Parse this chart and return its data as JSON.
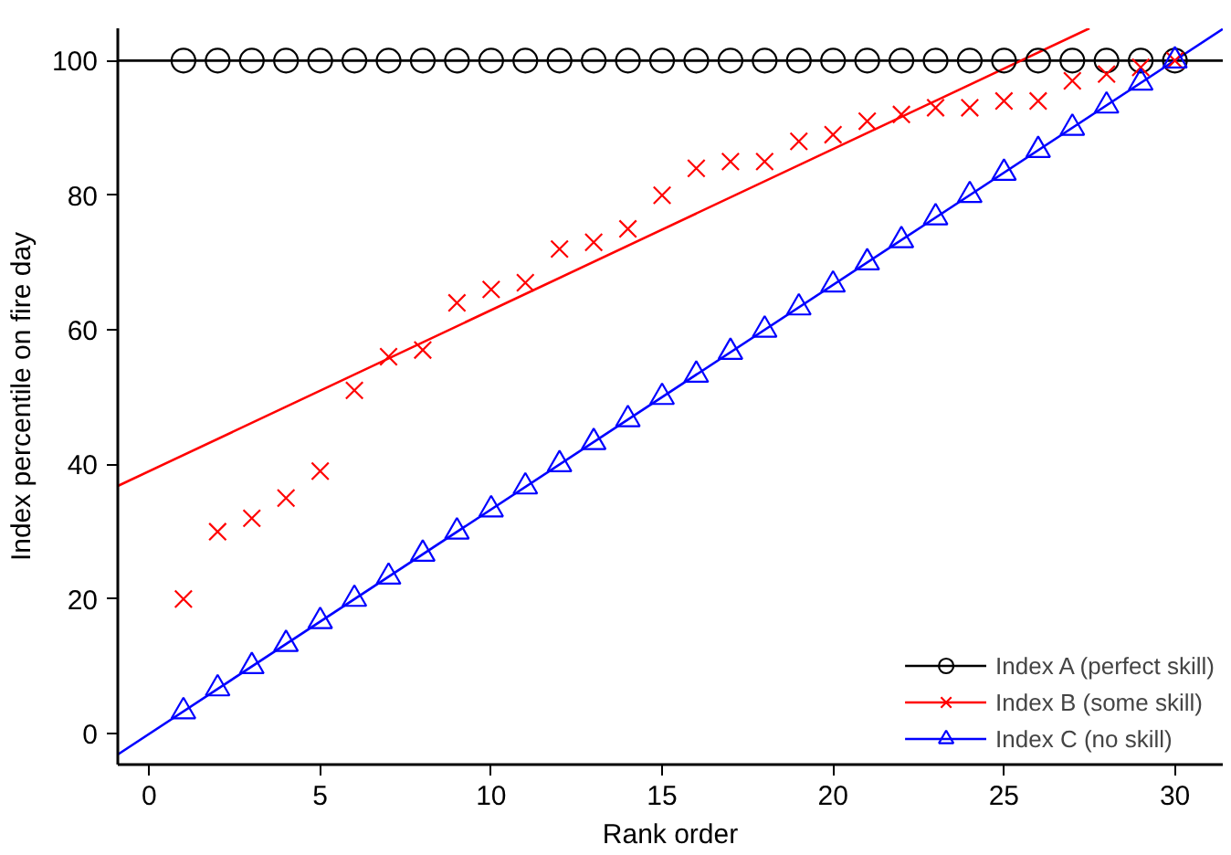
{
  "chart_data": {
    "type": "scatter",
    "xlabel": "Rank order",
    "ylabel": "Index percentile on fire day",
    "xlim": [
      -0.92,
      31.4
    ],
    "ylim": [
      -4.6,
      104.8
    ],
    "xticks": [
      0,
      5,
      10,
      15,
      20,
      25,
      30
    ],
    "yticks": [
      0,
      20,
      40,
      60,
      80,
      100
    ],
    "grid": false,
    "legend": "bottom right",
    "series": [
      {
        "type": "line",
        "color": "#000000",
        "x": [
          -0.92,
          31.4
        ],
        "values": [
          100,
          100
        ]
      },
      {
        "type": "line",
        "color": "#ff0000",
        "x": [
          -0.92,
          27.5
        ],
        "values": [
          36.8,
          104.8
        ]
      },
      {
        "type": "line",
        "color": "#0000ff",
        "x": [
          -0.92,
          31.4
        ],
        "values": [
          -3.1,
          104.7
        ]
      },
      {
        "name": "Index A (perfect skill)",
        "color": "#000000",
        "marker": "circle",
        "x": [
          1,
          2,
          3,
          4,
          5,
          6,
          7,
          8,
          9,
          10,
          11,
          12,
          13,
          14,
          15,
          16,
          17,
          18,
          19,
          20,
          21,
          22,
          23,
          24,
          25,
          26,
          27,
          28,
          29,
          30
        ],
        "values": [
          100,
          100,
          100,
          100,
          100,
          100,
          100,
          100,
          100,
          100,
          100,
          100,
          100,
          100,
          100,
          100,
          100,
          100,
          100,
          100,
          100,
          100,
          100,
          100,
          100,
          100,
          100,
          100,
          100,
          100
        ]
      },
      {
        "name": "Index B (some skill)",
        "color": "#ff0000",
        "marker": "cross",
        "x": [
          1,
          2,
          3,
          4,
          5,
          6,
          7,
          8,
          9,
          10,
          11,
          12,
          13,
          14,
          15,
          16,
          17,
          18,
          19,
          20,
          21,
          22,
          23,
          24,
          25,
          26,
          27,
          28,
          29,
          30
        ],
        "values": [
          20,
          30,
          32,
          35,
          39,
          51,
          56,
          57,
          64,
          66,
          67,
          72,
          73,
          75,
          80,
          84,
          85,
          85,
          88,
          89,
          91,
          92,
          93,
          93,
          94,
          94,
          97,
          98,
          99,
          100
        ]
      },
      {
        "name": "Index C (no skill)",
        "color": "#0000ff",
        "marker": "triangle",
        "x": [
          1,
          2,
          3,
          4,
          5,
          6,
          7,
          8,
          9,
          10,
          11,
          12,
          13,
          14,
          15,
          16,
          17,
          18,
          19,
          20,
          21,
          22,
          23,
          24,
          25,
          26,
          27,
          28,
          29,
          30
        ],
        "values": [
          3.3,
          6.7,
          10,
          13.3,
          16.7,
          20,
          23.3,
          26.7,
          30,
          33.3,
          36.7,
          40,
          43.3,
          46.7,
          50,
          53.3,
          56.7,
          60,
          63.3,
          66.7,
          70,
          73.3,
          76.7,
          80,
          83.3,
          86.7,
          90,
          93.3,
          96.7,
          100
        ]
      }
    ]
  }
}
